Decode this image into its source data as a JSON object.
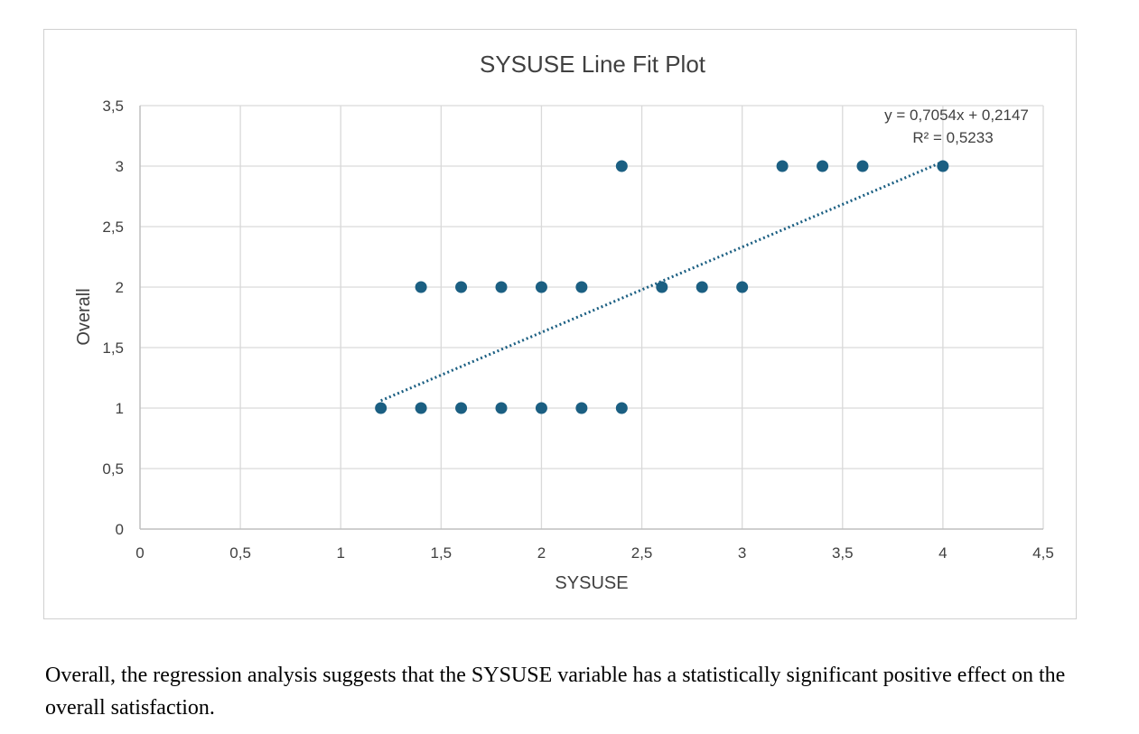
{
  "colors": {
    "marker": "#1b5f82",
    "trendline": "#1b5f82",
    "grid": "#d9d9d9",
    "text": "#404040"
  },
  "chart_data": {
    "type": "scatter",
    "title": "SYSUSE Line Fit Plot",
    "xlabel": "SYSUSE",
    "ylabel": "Overall",
    "xlim": [
      0,
      4.5
    ],
    "ylim": [
      0,
      3.5
    ],
    "x_ticks": [
      0,
      0.5,
      1,
      1.5,
      2,
      2.5,
      3,
      3.5,
      4,
      4.5
    ],
    "x_tick_labels": [
      "0",
      "0,5",
      "1",
      "1,5",
      "2",
      "2,5",
      "3",
      "3,5",
      "4",
      "4,5"
    ],
    "y_ticks": [
      0,
      0.5,
      1,
      1.5,
      2,
      2.5,
      3,
      3.5
    ],
    "y_tick_labels": [
      "0",
      "0,5",
      "1",
      "1,5",
      "2",
      "2,5",
      "3",
      "3,5"
    ],
    "grid": true,
    "legend": "none",
    "points": [
      {
        "x": 1.2,
        "y": 1
      },
      {
        "x": 1.4,
        "y": 1
      },
      {
        "x": 1.6,
        "y": 1
      },
      {
        "x": 1.8,
        "y": 1
      },
      {
        "x": 2.0,
        "y": 1
      },
      {
        "x": 2.2,
        "y": 1
      },
      {
        "x": 2.4,
        "y": 1
      },
      {
        "x": 1.4,
        "y": 2
      },
      {
        "x": 1.6,
        "y": 2
      },
      {
        "x": 1.8,
        "y": 2
      },
      {
        "x": 2.0,
        "y": 2
      },
      {
        "x": 2.2,
        "y": 2
      },
      {
        "x": 2.6,
        "y": 2
      },
      {
        "x": 2.8,
        "y": 2
      },
      {
        "x": 3.0,
        "y": 2
      },
      {
        "x": 2.4,
        "y": 3
      },
      {
        "x": 3.2,
        "y": 3
      },
      {
        "x": 3.4,
        "y": 3
      },
      {
        "x": 3.6,
        "y": 3
      },
      {
        "x": 4.0,
        "y": 3
      }
    ],
    "trendline": {
      "type": "linear",
      "slope": 0.7054,
      "intercept": 0.2147,
      "x_range": [
        1.2,
        4.0
      ],
      "style": "dotted",
      "equation_label": "y = 0,7054x + 0,2147",
      "r2_label": "R² = 0,5233"
    }
  },
  "caption": "Overall, the regression analysis suggests that the SYSUSE variable has a statistically significant positive effect on the overall satisfaction."
}
